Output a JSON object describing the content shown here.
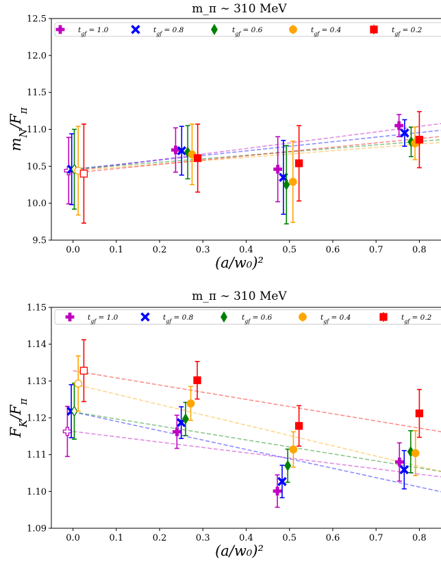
{
  "chart_data": [
    {
      "type": "scatter",
      "title": "m_π ∼ 310 MeV",
      "xlabel": "(a/w₀)²",
      "ylabel": "m_N/F_π",
      "xlim": [
        -0.05,
        0.85
      ],
      "ylim": [
        9.5,
        12.5
      ],
      "xticks": [
        0.0,
        0.1,
        0.2,
        0.3,
        0.4,
        0.5,
        0.6,
        0.7,
        0.8
      ],
      "yticks": [
        9.5,
        10.0,
        10.5,
        11.0,
        11.5,
        12.0,
        12.5
      ],
      "legend": "top",
      "series": [
        {
          "name": "t_gf = 1.0",
          "color": "#c000c0",
          "marker": "plus",
          "x": [
            0.237,
            0.473,
            0.753
          ],
          "y": [
            10.72,
            10.46,
            11.05
          ],
          "err": [
            0.3,
            0.44,
            0.15
          ],
          "extrap": {
            "x": -0.01,
            "y": 10.44,
            "err": 0.45
          },
          "fit": [
            10.44,
            0.75
          ]
        },
        {
          "name": "t_gf = 0.8",
          "color": "#0000ff",
          "marker": "x",
          "x": [
            0.251,
            0.486,
            0.766
          ],
          "y": [
            10.71,
            10.35,
            10.95
          ],
          "err": [
            0.33,
            0.5,
            0.18
          ],
          "extrap": {
            "x": -0.003,
            "y": 10.46,
            "err": 0.48
          },
          "fit": [
            10.46,
            0.62
          ]
        },
        {
          "name": "t_gf = 0.6",
          "color": "#008000",
          "marker": "diamond",
          "x": [
            0.265,
            0.493,
            0.781
          ],
          "y": [
            10.69,
            10.25,
            10.83
          ],
          "err": [
            0.36,
            0.53,
            0.2
          ],
          "extrap": {
            "x": 0.003,
            "y": 10.46,
            "err": 0.54
          },
          "fit": [
            10.46,
            0.47
          ]
        },
        {
          "name": "t_gf = 0.4",
          "color": "#ffa500",
          "marker": "circle",
          "x": [
            0.275,
            0.508,
            0.79
          ],
          "y": [
            10.66,
            10.29,
            10.81
          ],
          "err": [
            0.41,
            0.55,
            0.22
          ],
          "extrap": {
            "x": 0.012,
            "y": 10.44,
            "err": 0.6
          },
          "fit": [
            10.44,
            0.45
          ]
        },
        {
          "name": "t_gf = 0.2",
          "color": "#ff0000",
          "marker": "square",
          "x": [
            0.288,
            0.522,
            0.8
          ],
          "y": [
            10.61,
            10.54,
            10.86
          ],
          "err": [
            0.46,
            0.51,
            0.38
          ],
          "extrap": {
            "x": 0.025,
            "y": 10.4,
            "err": 0.67
          },
          "fit": [
            10.41,
            0.58
          ]
        }
      ]
    },
    {
      "type": "scatter",
      "title": "m_π ∼ 310 MeV",
      "xlabel": "(a/w₀)²",
      "ylabel": "F_K/F_π",
      "xlim": [
        -0.05,
        0.85
      ],
      "ylim": [
        1.09,
        1.15
      ],
      "xticks": [
        0.0,
        0.1,
        0.2,
        0.3,
        0.4,
        0.5,
        0.6,
        0.7,
        0.8
      ],
      "yticks": [
        1.09,
        1.1,
        1.11,
        1.12,
        1.13,
        1.14,
        1.15
      ],
      "legend": "top",
      "series": [
        {
          "name": "t_gf = 1.0",
          "color": "#c000c0",
          "marker": "plus",
          "x": [
            0.24,
            0.472,
            0.754
          ],
          "y": [
            1.1162,
            1.1001,
            1.108
          ],
          "err": [
            0.0045,
            0.0044,
            0.0052
          ],
          "extrap": {
            "x": -0.013,
            "y": 1.1163,
            "err": 0.0068
          },
          "fit": [
            1.1163,
            -0.0145
          ]
        },
        {
          "name": "t_gf = 0.8",
          "color": "#0000ff",
          "marker": "x",
          "x": [
            0.25,
            0.483,
            0.765
          ],
          "y": [
            1.1187,
            1.1027,
            1.1059
          ],
          "err": [
            0.0043,
            0.0044,
            0.0052
          ],
          "extrap": {
            "x": -0.004,
            "y": 1.1218,
            "err": 0.0072
          },
          "fit": [
            1.1216,
            -0.0255
          ]
        },
        {
          "name": "t_gf = 0.6",
          "color": "#008000",
          "marker": "diamond",
          "x": [
            0.26,
            0.496,
            0.78
          ],
          "y": [
            1.1197,
            1.107,
            1.1108
          ],
          "err": [
            0.0045,
            0.0045,
            0.0057
          ],
          "extrap": {
            "x": 0.003,
            "y": 1.1218,
            "err": 0.0076
          },
          "fit": [
            1.1216,
            -0.019
          ]
        },
        {
          "name": "t_gf = 0.4",
          "color": "#ffa500",
          "marker": "circle",
          "x": [
            0.272,
            0.509,
            0.791
          ],
          "y": [
            1.1239,
            1.1114,
            1.1104
          ],
          "err": [
            0.0046,
            0.0048,
            0.0061
          ],
          "extrap": {
            "x": 0.012,
            "y": 1.1293,
            "err": 0.0075
          },
          "fit": [
            1.1292,
            -0.028
          ]
        },
        {
          "name": "t_gf = 0.2",
          "color": "#ff0000",
          "marker": "square",
          "x": [
            0.287,
            0.522,
            0.8
          ],
          "y": [
            1.1302,
            1.1178,
            1.1212
          ],
          "err": [
            0.0051,
            0.0055,
            0.0065
          ],
          "extrap": {
            "x": 0.025,
            "y": 1.1328,
            "err": 0.0084
          },
          "fit": [
            1.1328,
            -0.0195
          ]
        }
      ]
    }
  ]
}
